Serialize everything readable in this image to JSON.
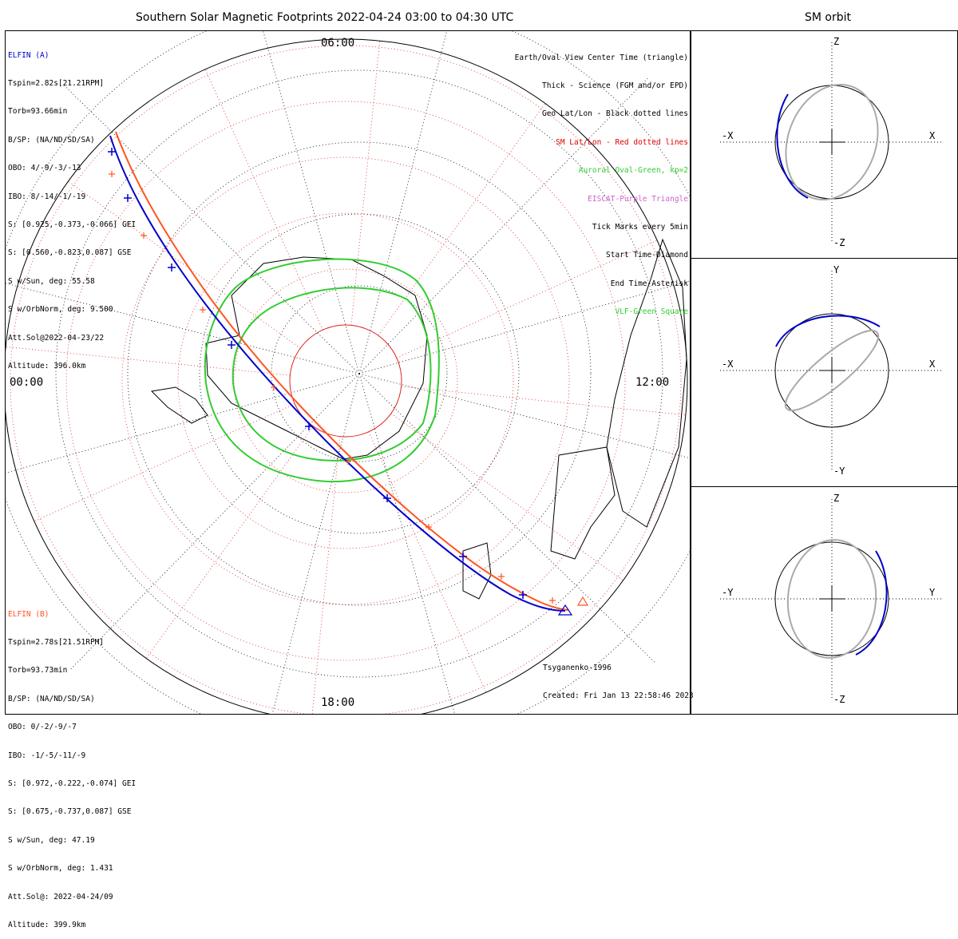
{
  "title": "Southern Solar Magnetic Footprints 2022-04-24 03:00 to 04:30 UTC",
  "orbit_title": "SM orbit",
  "colors": {
    "elfin_a": "#0000cc",
    "elfin_b": "#ff5522",
    "oval": "#33cc33",
    "sm_grid": "#dd2222",
    "orbit_gray": "#aaaaaa",
    "eiscat": "#cc66cc"
  },
  "map_labels": {
    "top": "06:00",
    "left": "00:00",
    "right": "12:00",
    "bottom": "18:00"
  },
  "elfin_a": {
    "name": "ELFIN (A)",
    "lines": [
      "Tspin=2.82s[21.21RPM]",
      "Torb=93.66min",
      "B/SP: (NA/ND/SD/SA)",
      "OBO: 4/-9/-3/-13",
      "IBO: 8/-14/-1/-19",
      "S: [0.925,-0.373,-0.066] GEI",
      "S: [0.560,-0.823,0.087] GSE",
      "S w/Sun, deg: 55.58",
      "S w/OrbNorm, deg: 9.500",
      "Att.Sol@2022-04-23/22",
      "Altitude: 396.0km"
    ]
  },
  "elfin_b": {
    "name": "ELFIN (B)",
    "lines": [
      "Tspin=2.78s[21.51RPM]",
      "Torb=93.73min",
      "B/SP: (NA/ND/SD/SA)",
      "OBO: 0/-2/-9/-7",
      "IBO: -1/-5/-11/-9",
      "S: [0.972,-0.222,-0.074] GEI",
      "S: [0.675,-0.737,0.087] GSE",
      "S w/Sun, deg: 47.19",
      "S w/OrbNorm, deg: 1.431",
      "Att.Sol@: 2022-04-24/09",
      "Altitude: 399.9km"
    ]
  },
  "legend": [
    {
      "text": "Earth/Oval View Center Time (triangle)",
      "color": "#000000"
    },
    {
      "text": "Thick - Science (FGM and/or EPD)",
      "color": "#000000"
    },
    {
      "text": "Geo Lat/Lon - Black dotted lines",
      "color": "#000000"
    },
    {
      "text": "SM Lat/Lon - Red dotted lines",
      "color": "#dd0000"
    },
    {
      "text": "Auroral Oval-Green, kp=2",
      "color": "#33cc33"
    },
    {
      "text": "EISCAT-Purple Triangle",
      "color": "#cc66cc"
    },
    {
      "text": "Tick Marks every 5min",
      "color": "#000000"
    },
    {
      "text": "Start Time-Diamond",
      "color": "#000000"
    },
    {
      "text": "End Time-Asterisk",
      "color": "#000000"
    },
    {
      "text": "VLF-Green Square",
      "color": "#33cc33"
    }
  ],
  "credit": {
    "line1": "Tsyganenko-1996",
    "line2": "Created: Fri Jan 13 22:58:46 2023"
  },
  "orbit_panels": [
    {
      "top": "Z",
      "bottom": "-Z",
      "left": "-X",
      "right": "X"
    },
    {
      "top": "Y",
      "bottom": "-Y",
      "left": "-X",
      "right": "X"
    },
    {
      "top": "Z",
      "bottom": "-Z",
      "left": "-Y",
      "right": "Y"
    }
  ],
  "chart_data": {
    "type": "scatter",
    "title": "Southern Solar Magnetic Footprints 2022-04-24 03:00 to 04:30 UTC",
    "series": [
      {
        "name": "ELFIN (A)",
        "color": "#0000cc"
      },
      {
        "name": "ELFIN (B)",
        "color": "#ff5522"
      }
    ]
  }
}
